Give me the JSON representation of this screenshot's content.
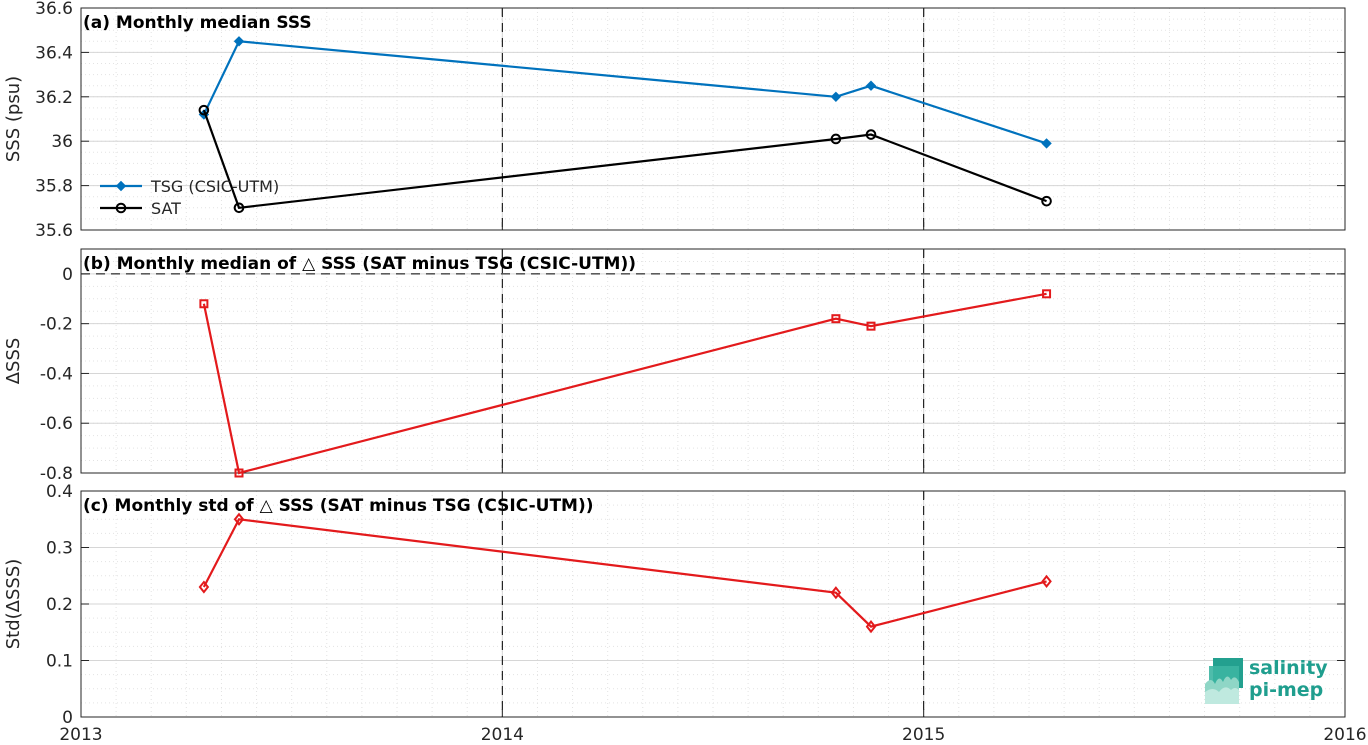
{
  "chart_data": [
    {
      "type": "line",
      "title": "(a) Monthly median SSS",
      "xlabel": "",
      "ylabel": "SSS (psu)",
      "xlim": [
        2013,
        2016
      ],
      "ylim": [
        35.6,
        36.6
      ],
      "x_ticks": [
        "2013",
        "2014",
        "2015",
        "2016"
      ],
      "y_ticks": [
        "35.6",
        "35.8",
        "36",
        "36.2",
        "36.4",
        "36.6"
      ],
      "grid": true,
      "legend": "left",
      "series": [
        {
          "name": "TSG (CSIC-UTM)",
          "color": "#0072BD",
          "marker": "diamond-filled",
          "x": [
            "2013-04",
            "2013-05",
            "2014-10",
            "2014-11",
            "2015-04"
          ],
          "values": [
            36.12,
            36.45,
            36.2,
            36.25,
            35.99
          ]
        },
        {
          "name": "SAT",
          "color": "#000000",
          "marker": "circle",
          "x": [
            "2013-04",
            "2013-05",
            "2014-10",
            "2014-11",
            "2015-04"
          ],
          "values": [
            36.14,
            35.7,
            36.01,
            36.03,
            35.73
          ]
        }
      ]
    },
    {
      "type": "line",
      "title": "(b) Monthly median of △ SSS (SAT minus TSG (CSIC-UTM))",
      "xlabel": "",
      "ylabel": "ΔSSS",
      "xlim": [
        2013,
        2016
      ],
      "ylim": [
        -0.8,
        0.1
      ],
      "x_ticks": [
        "2013",
        "2014",
        "2015",
        "2016"
      ],
      "y_ticks": [
        "-0.8",
        "-0.6",
        "-0.4",
        "-0.2",
        "0"
      ],
      "grid": true,
      "series": [
        {
          "color": "#E31A1C",
          "marker": "square",
          "x": [
            "2013-04",
            "2013-05",
            "2014-10",
            "2014-11",
            "2015-04"
          ],
          "values": [
            -0.12,
            -0.8,
            -0.18,
            -0.21,
            -0.08
          ]
        }
      ]
    },
    {
      "type": "line",
      "title": "(c) Monthly std of △ SSS (SAT minus TSG (CSIC-UTM))",
      "xlabel": "",
      "ylabel": "Std(ΔSSS)",
      "xlim": [
        2013,
        2016
      ],
      "ylim": [
        0,
        0.4
      ],
      "x_ticks": [
        "2013",
        "2014",
        "2015",
        "2016"
      ],
      "y_ticks": [
        "0",
        "0.1",
        "0.2",
        "0.3",
        "0.4"
      ],
      "grid": true,
      "series": [
        {
          "color": "#E31A1C",
          "marker": "diamond",
          "x": [
            "2013-04",
            "2013-05",
            "2014-10",
            "2014-11",
            "2015-04"
          ],
          "values": [
            0.23,
            0.35,
            0.22,
            0.16,
            0.24
          ]
        }
      ]
    }
  ],
  "logo": {
    "line1": "salinity",
    "line2": "pi-mep",
    "icon": "salinity-pimep-logo-icon"
  },
  "colors": {
    "axis": "#262626",
    "grid": "#e3e3e3",
    "dashed": "#000000"
  }
}
